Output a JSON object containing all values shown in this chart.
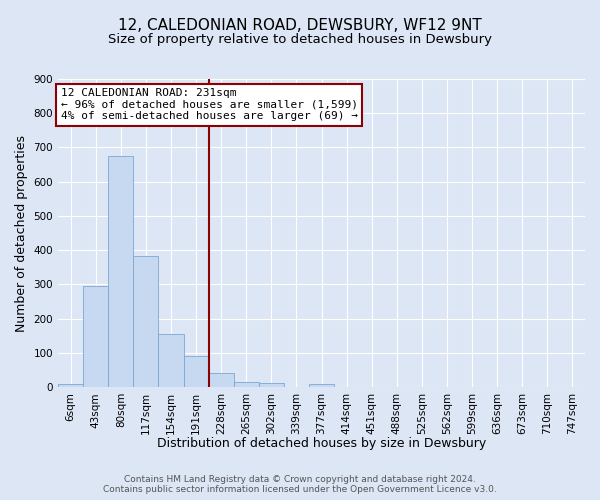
{
  "title": "12, CALEDONIAN ROAD, DEWSBURY, WF12 9NT",
  "subtitle": "Size of property relative to detached houses in Dewsbury",
  "xlabel": "Distribution of detached houses by size in Dewsbury",
  "ylabel": "Number of detached properties",
  "bin_labels": [
    "6sqm",
    "43sqm",
    "80sqm",
    "117sqm",
    "154sqm",
    "191sqm",
    "228sqm",
    "265sqm",
    "302sqm",
    "339sqm",
    "377sqm",
    "414sqm",
    "451sqm",
    "488sqm",
    "525sqm",
    "562sqm",
    "599sqm",
    "636sqm",
    "673sqm",
    "710sqm",
    "747sqm"
  ],
  "bar_heights": [
    10,
    295,
    675,
    383,
    155,
    90,
    43,
    15,
    12,
    0,
    10,
    0,
    0,
    0,
    0,
    0,
    0,
    0,
    0,
    0,
    0
  ],
  "bar_color": "#c6d9f0",
  "bar_edge_color": "#7ba7d4",
  "vline_x": 6,
  "vline_color": "#8b0000",
  "annotation_title": "12 CALEDONIAN ROAD: 231sqm",
  "annotation_line1": "← 96% of detached houses are smaller (1,599)",
  "annotation_line2": "4% of semi-detached houses are larger (69) →",
  "annotation_box_edgecolor": "#8b0000",
  "annotation_box_facecolor": "#ffffff",
  "ylim": [
    0,
    900
  ],
  "yticks": [
    0,
    100,
    200,
    300,
    400,
    500,
    600,
    700,
    800,
    900
  ],
  "footer1": "Contains HM Land Registry data © Crown copyright and database right 2024.",
  "footer2": "Contains public sector information licensed under the Open Government Licence v3.0.",
  "background_color": "#dce6f5",
  "plot_bg_color": "#dce6f5",
  "grid_color": "#ffffff",
  "title_fontsize": 11,
  "subtitle_fontsize": 9.5,
  "label_fontsize": 9,
  "tick_fontsize": 7.5,
  "footer_fontsize": 6.5,
  "annotation_fontsize": 8
}
